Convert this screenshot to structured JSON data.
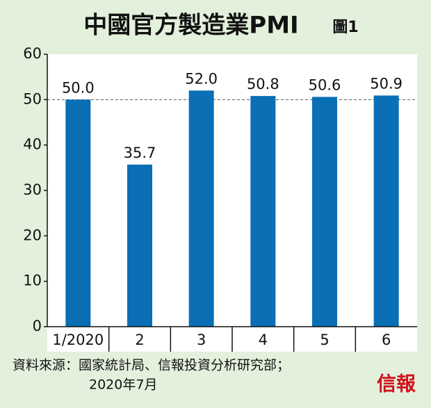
{
  "chart_data": {
    "type": "bar",
    "title": "中國官方製造業PMI",
    "figure_label": "圖1",
    "categories": [
      "1/2020",
      "2",
      "3",
      "4",
      "5",
      "6"
    ],
    "values": [
      50.0,
      35.7,
      52.0,
      50.8,
      50.6,
      50.9
    ],
    "value_labels": [
      "50.0",
      "35.7",
      "52.0",
      "50.8",
      "50.6",
      "50.9"
    ],
    "color": "#0a6fb5",
    "ylim": [
      0,
      60
    ],
    "yticks": [
      0,
      10,
      20,
      30,
      40,
      50,
      60
    ],
    "reference_line": 50,
    "source": "資料來源：國家統計局、信報投資分析研究部；",
    "date": "2020年7月",
    "logo": "信報"
  }
}
